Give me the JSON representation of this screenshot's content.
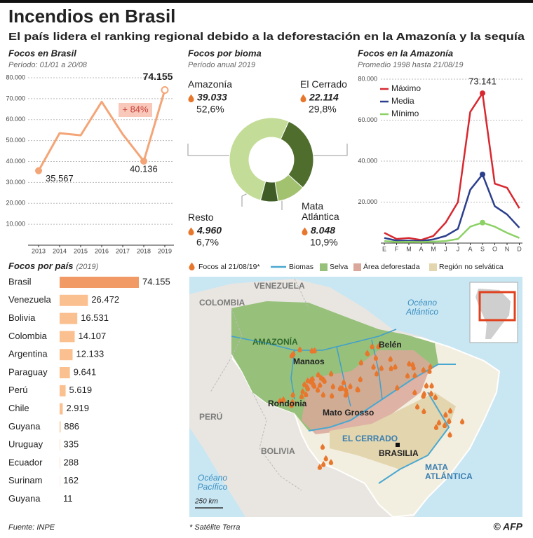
{
  "header": {
    "title": "Incendios en Brasil",
    "subtitle": "El país lidera el ranking regional debido a la deforestación en la Amazonía y la sequía"
  },
  "chart_data": [
    {
      "type": "line",
      "title": "Focos en Brasil",
      "subtitle": "Período: 01/01 a 20/08",
      "categories": [
        "2013",
        "2014",
        "2015",
        "2016",
        "2017",
        "2018",
        "2019"
      ],
      "values": [
        35567,
        53500,
        52500,
        68500,
        53000,
        40136,
        74155
      ],
      "value_labels": [
        "35.567",
        null,
        null,
        null,
        null,
        "40.136",
        "74.155"
      ],
      "annotation": "+ 84%",
      "color": "#f4a577",
      "ylim": [
        0,
        80000
      ],
      "yticks": [
        {
          "value": 10000,
          "label": "10.000"
        },
        {
          "value": 20000,
          "label": "20.000"
        },
        {
          "value": 30000,
          "label": "30.000"
        },
        {
          "value": 40000,
          "label": "40.000"
        },
        {
          "value": 50000,
          "label": "50.000"
        },
        {
          "value": 60000,
          "label": "60.000"
        },
        {
          "value": 70000,
          "label": "70.000"
        },
        {
          "value": 80000,
          "label": "80.000"
        }
      ],
      "grid": true
    },
    {
      "type": "donut",
      "title": "Focos por bioma",
      "subtitle": "Período anual 2019",
      "categories": [
        "Amazonía",
        "El Cerrado",
        "Mata Atlántica",
        "Resto"
      ],
      "values": [
        39033,
        22114,
        8048,
        4960
      ],
      "value_labels": [
        "39.033",
        "22.114",
        "8.048",
        "4.960"
      ],
      "shares": [
        52.6,
        29.8,
        10.9,
        6.7
      ],
      "share_labels": [
        "52,6%",
        "29,8%",
        "10,9%",
        "6,7%"
      ],
      "colors": [
        "#c3dc98",
        "#4f6d2d",
        "#a3c26f",
        "#3f5c26"
      ]
    },
    {
      "type": "line",
      "title": "Focos en la Amazonía",
      "subtitle": "Promedio 1998 hasta 21/08/19",
      "categories": [
        "E",
        "F",
        "M",
        "A",
        "M",
        "J",
        "J",
        "A",
        "S",
        "O",
        "N",
        "D"
      ],
      "series": [
        {
          "name": "Máximo",
          "color": "#d7282f",
          "values": [
            5000,
            2000,
            2500,
            1500,
            3500,
            10000,
            20000,
            64000,
            73141,
            29000,
            27000,
            17000
          ],
          "value_labels": [
            null,
            null,
            null,
            null,
            null,
            null,
            null,
            null,
            "73.141",
            null,
            null,
            null
          ]
        },
        {
          "name": "Media",
          "color": "#2b3f8c",
          "values": [
            2500,
            1200,
            1200,
            1000,
            1800,
            3500,
            7000,
            26000,
            33500,
            18000,
            14000,
            7500
          ]
        },
        {
          "name": "Mínimo",
          "color": "#8cd166",
          "values": [
            1000,
            500,
            600,
            500,
            700,
            1000,
            2000,
            8000,
            10000,
            8000,
            5000,
            2500
          ]
        }
      ],
      "ylim": [
        0,
        80000
      ],
      "yticks": [
        {
          "value": 20000,
          "label": "20.000"
        },
        {
          "value": 40000,
          "label": "40.000"
        },
        {
          "value": 60000,
          "label": "60.000"
        },
        {
          "value": 80000,
          "label": "80.000"
        }
      ],
      "grid": true,
      "legend": "upper-left"
    },
    {
      "type": "bar",
      "orientation": "horizontal",
      "title": "Focos por país",
      "subtitle": "(2019)",
      "categories": [
        "Brasil",
        "Venezuela",
        "Bolivia",
        "Colombia",
        "Argentina",
        "Paraguay",
        "Perú",
        "Chile",
        "Guyana",
        "Uruguay",
        "Ecuador",
        "Surinam",
        "Guyana"
      ],
      "values": [
        74155,
        26472,
        16531,
        14107,
        12133,
        9641,
        5619,
        2919,
        886,
        335,
        288,
        162,
        11
      ],
      "value_labels": [
        "74.155",
        "26.472",
        "16.531",
        "14.107",
        "12.133",
        "9.641",
        "5.619",
        "2.919",
        "886",
        "335",
        "288",
        "162",
        "11"
      ],
      "colors": [
        "#f29a66",
        "#fbc08f",
        "#fbc08f",
        "#fbc08f",
        "#fbc08f",
        "#fbc08f",
        "#fbc08f",
        "#fbc08f",
        "#fbc08f",
        "#fbc08f",
        "#fbc08f",
        "#fbc08f",
        "#fbc08f"
      ]
    }
  ],
  "map": {
    "legend": [
      "Focos al 21/08/19*",
      "Biomas",
      "Selva",
      "Área deforestada",
      "Región no selvática"
    ],
    "labels": {
      "venezuela": "VENEZUELA",
      "colombia": "COLOMBIA",
      "atlantic": "Océano Atlántico",
      "amazonia": "AMAZONÍA",
      "belen": "Belén",
      "manaos": "Manaos",
      "rondonia": "Rondonia",
      "mato_grosso": "Mato Grosso",
      "peru": "PERÚ",
      "bolivia": "BOLIVIA",
      "cerrado": "EL CERRADO",
      "brasilia": "BRASILIA",
      "mata": "MATA ATLÁNTICA",
      "pacific": "Océano Pacífico",
      "scale": "250 km"
    }
  },
  "footer": {
    "source": "Fuente: INPE",
    "note": "* Satélite Terra",
    "credit": "© AFP"
  }
}
